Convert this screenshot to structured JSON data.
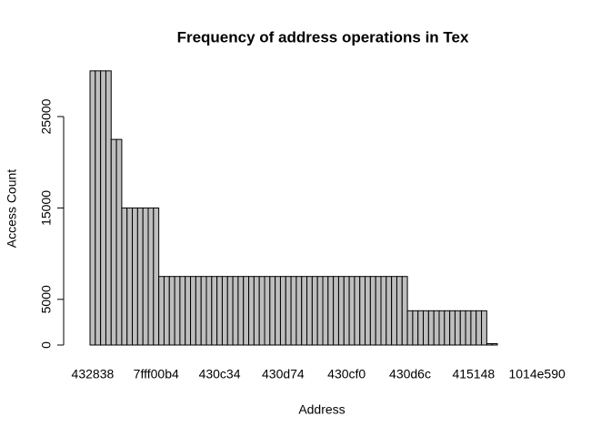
{
  "chart_data": {
    "type": "bar",
    "title": "Frequency of address operations in Tex",
    "x_label": "Address",
    "y_label": "Access Count",
    "color": "#bebebe",
    "ylim": [
      0,
      31000
    ],
    "yticks": [
      0,
      5000,
      15000,
      25000
    ],
    "categories": [
      "432838",
      null,
      null,
      null,
      null,
      null,
      null,
      null,
      null,
      null,
      null,
      null,
      "7fff00b4",
      null,
      null,
      null,
      null,
      null,
      null,
      null,
      null,
      null,
      null,
      null,
      "430c34",
      null,
      null,
      null,
      null,
      null,
      null,
      null,
      null,
      null,
      null,
      null,
      "430d74",
      null,
      null,
      null,
      null,
      null,
      null,
      null,
      null,
      null,
      null,
      null,
      "430cf0",
      null,
      null,
      null,
      null,
      null,
      null,
      null,
      null,
      null,
      null,
      null,
      "430d6c",
      null,
      null,
      null,
      null,
      null,
      null,
      null,
      null,
      null,
      null,
      null,
      "415148",
      null,
      null,
      null,
      null,
      null,
      null,
      null,
      null,
      null,
      null,
      null,
      "1014e590",
      null,
      null,
      null
    ],
    "values": [
      30000,
      30000,
      30000,
      30000,
      22500,
      22500,
      15000,
      15000,
      15000,
      15000,
      15000,
      15000,
      15000,
      7500,
      7500,
      7500,
      7500,
      7500,
      7500,
      7500,
      7500,
      7500,
      7500,
      7500,
      7500,
      7500,
      7500,
      7500,
      7500,
      7500,
      7500,
      7500,
      7500,
      7500,
      7500,
      7500,
      7500,
      7500,
      7500,
      7500,
      7500,
      7500,
      7500,
      7500,
      7500,
      7500,
      7500,
      7500,
      7500,
      7500,
      7500,
      7500,
      7500,
      7500,
      7500,
      7500,
      7500,
      7500,
      7500,
      7500,
      3750,
      3750,
      3750,
      3750,
      3750,
      3750,
      3750,
      3750,
      3750,
      3750,
      3750,
      3750,
      3750,
      3750,
      3750,
      150,
      150,
      0,
      0,
      0,
      0,
      0,
      0,
      0,
      0,
      0,
      0,
      0
    ]
  }
}
